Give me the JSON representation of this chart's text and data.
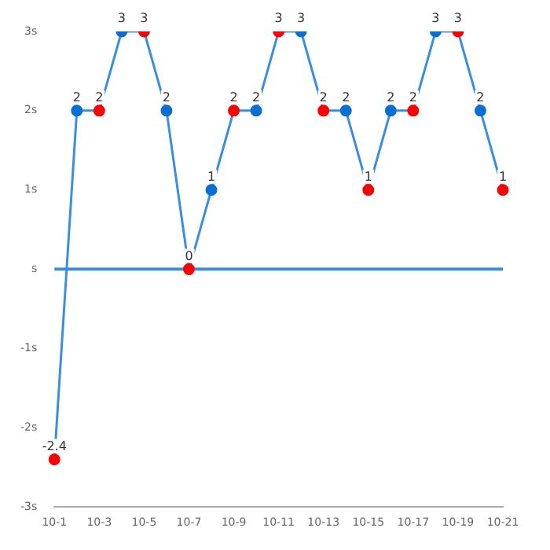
{
  "chart_data": {
    "type": "line",
    "categories": [
      "10-1",
      null,
      "10-3",
      null,
      "10-5",
      null,
      "10-7",
      null,
      "10-9",
      null,
      "10-11",
      null,
      "10-13",
      null,
      "10-15",
      null,
      "10-17",
      null,
      "10-19",
      null,
      "10-21"
    ],
    "series": [
      {
        "color": "#3a8ee0",
        "values": [
          -2.4,
          2,
          2,
          3,
          3,
          2,
          0,
          1,
          2,
          2,
          3,
          3,
          2,
          2,
          1,
          2,
          2,
          3,
          3,
          2,
          1
        ],
        "colors": [
          "#ff0000",
          "#0a6fd1",
          "#ff0000",
          "#0a6fd1",
          "#ff0000",
          "#0a6fd1",
          "#ff0000",
          "#0a6fd1",
          "#ff0000",
          "#0a6fd1",
          "#ff0000",
          "#0a6fd1",
          "#ff0000",
          "#0a6fd1",
          "#ff0000",
          "#0a6fd1",
          "#ff0000",
          "#0a6fd1",
          "#ff0000",
          "#0a6fd1",
          "#ff0000"
        ]
      }
    ],
    "ylim": [
      -3,
      3
    ],
    "yticks": [
      {
        "value": -3,
        "label": "-3s"
      },
      {
        "value": -2,
        "label": "-2s"
      },
      {
        "value": -1,
        "label": "-1s"
      },
      {
        "value": 0,
        "label": "s"
      },
      {
        "value": 1,
        "label": "1s"
      },
      {
        "value": 2,
        "label": "2s"
      },
      {
        "value": 3,
        "label": "3s"
      }
    ],
    "ref_lines": [
      {
        "axis": "y",
        "value": 0,
        "color": "#3a8ee0"
      }
    ],
    "data_labels": true,
    "marker": "circle",
    "line_style": "solid",
    "grid": false,
    "legend": false
  }
}
